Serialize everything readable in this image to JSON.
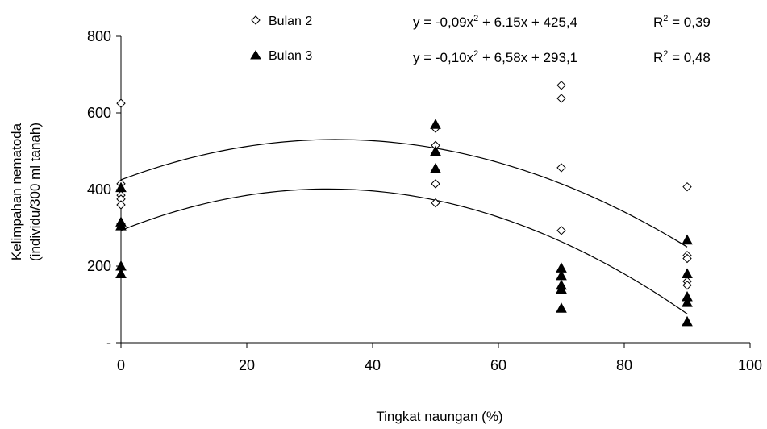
{
  "chart_data": {
    "type": "scatter",
    "title": "",
    "xlabel": "Tingkat  naungan (%)",
    "ylabel_lines": [
      "Kelimpahan  nematoda",
      "(individu/300 ml tanah)"
    ],
    "xlim": [
      0,
      100
    ],
    "ylim": [
      0,
      800
    ],
    "x_ticks": [
      0,
      20,
      40,
      60,
      80,
      100
    ],
    "x_tick_labels": [
      "0",
      "20",
      "40",
      "60",
      "80",
      "100"
    ],
    "y_ticks": [
      0,
      200,
      400,
      600,
      800
    ],
    "y_tick_labels": [
      "-",
      "200",
      "400",
      "600",
      "800"
    ],
    "grid": false,
    "legend_position": "top-left",
    "series": [
      {
        "name": "Bulan 2",
        "marker": "diamond-open",
        "color": "#000000",
        "x": [
          0,
          0,
          0,
          0,
          0,
          0,
          50,
          50,
          50,
          50,
          70,
          70,
          70,
          70,
          90,
          90,
          90,
          90,
          90
        ],
        "y": [
          625,
          415,
          385,
          375,
          360,
          310,
          560,
          515,
          415,
          365,
          672,
          638,
          457,
          293,
          407,
          228,
          220,
          160,
          150
        ],
        "fit": {
          "a": -0.09,
          "b": 6.15,
          "c": 425.4,
          "equation_lhs": "y = -0,09x",
          "equation_rhs": " + 6.15x + 425,4",
          "r2_label": "R",
          "r2_value": " = 0,39"
        }
      },
      {
        "name": "Bulan 3",
        "marker": "triangle-filled",
        "color": "#000000",
        "x": [
          0,
          0,
          0,
          0,
          0,
          50,
          50,
          50,
          70,
          70,
          70,
          70,
          70,
          90,
          90,
          90,
          90,
          90
        ],
        "y": [
          405,
          315,
          305,
          200,
          180,
          570,
          500,
          455,
          195,
          175,
          150,
          140,
          90,
          268,
          180,
          120,
          105,
          55
        ],
        "fit": {
          "a": -0.1,
          "b": 6.58,
          "c": 293.1,
          "equation_lhs": "y = -0,10x",
          "equation_rhs": " + 6,58x + 293,1",
          "r2_label": "R",
          "r2_value": " = 0,48"
        }
      }
    ],
    "superscript": "2"
  }
}
